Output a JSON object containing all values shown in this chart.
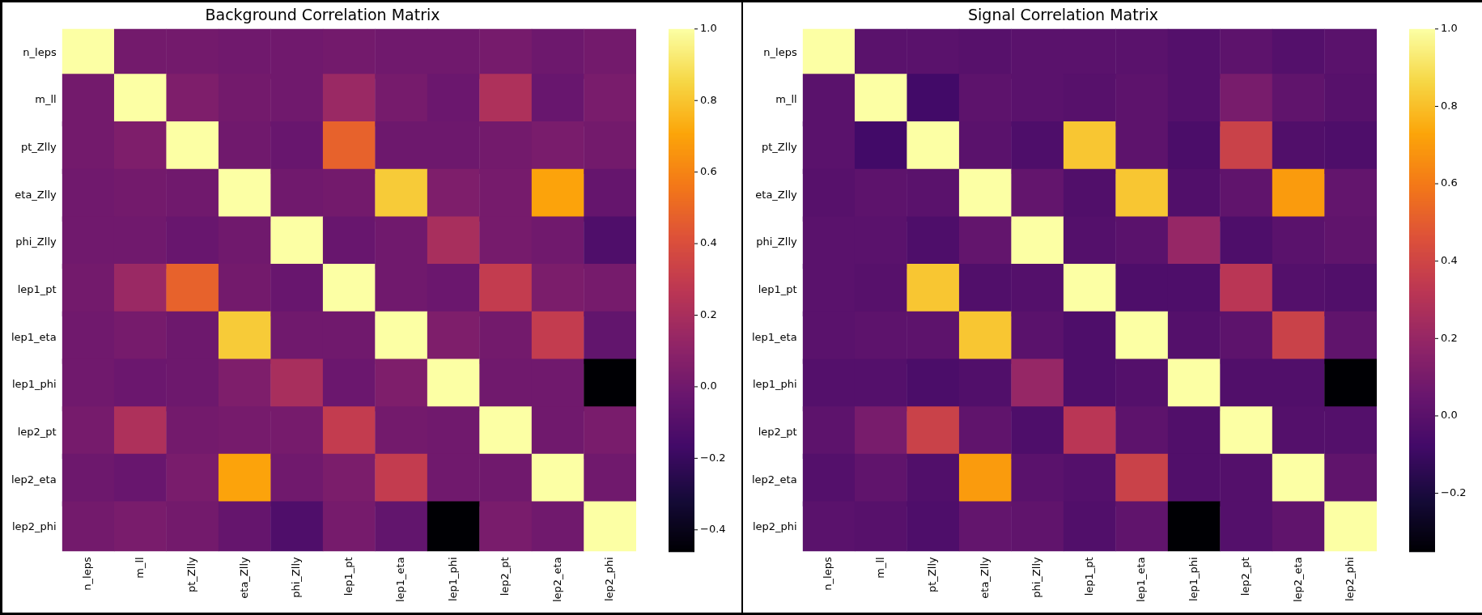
{
  "chart_data": [
    {
      "type": "heatmap",
      "title": "Background Correlation Matrix",
      "grid": false,
      "categories": [
        "n_leps",
        "m_ll",
        "pt_Zlly",
        "eta_Zlly",
        "phi_Zlly",
        "lep1_pt",
        "lep1_eta",
        "lep1_phi",
        "lep2_pt",
        "lep2_eta",
        "lep2_phi"
      ],
      "y_categories": [
        "n_leps",
        "m_ll",
        "pt_Zlly",
        "eta_Zlly",
        "phi_Zlly",
        "lep1_pt",
        "lep1_eta",
        "lep1_phi",
        "lep2_pt",
        "lep2_eta",
        "lep2_phi"
      ],
      "cells": [
        [
          1,
          0.01,
          0.01,
          0.0,
          0.0,
          0.01,
          0.0,
          0.0,
          0.02,
          -0.01,
          0.01
        ],
        [
          0.01,
          1,
          0.05,
          0.01,
          0.0,
          0.15,
          0.02,
          -0.02,
          0.22,
          -0.03,
          0.03
        ],
        [
          0.01,
          0.05,
          1,
          0.0,
          -0.03,
          0.48,
          -0.01,
          -0.01,
          0.01,
          0.03,
          0.01
        ],
        [
          0.0,
          0.01,
          0.0,
          1,
          0.0,
          0.01,
          0.82,
          0.05,
          0.02,
          0.7,
          -0.04
        ],
        [
          0.0,
          0.0,
          -0.03,
          0.0,
          1,
          -0.03,
          0.0,
          0.2,
          0.02,
          0.0,
          -0.12
        ],
        [
          0.01,
          0.15,
          0.48,
          0.01,
          -0.03,
          1,
          0.0,
          -0.02,
          0.3,
          0.04,
          0.02
        ],
        [
          0.0,
          0.02,
          -0.01,
          0.82,
          0.0,
          0.0,
          1,
          0.05,
          0.01,
          0.3,
          -0.05
        ],
        [
          0.0,
          -0.02,
          -0.01,
          0.05,
          0.2,
          -0.02,
          0.05,
          1,
          0.0,
          0.0,
          -0.46
        ],
        [
          0.02,
          0.22,
          0.01,
          0.02,
          0.02,
          0.3,
          0.01,
          0.0,
          1,
          0.0,
          0.03
        ],
        [
          -0.01,
          -0.03,
          0.03,
          0.7,
          0.0,
          0.04,
          0.3,
          0.0,
          0.0,
          1,
          0.0
        ],
        [
          0.01,
          0.03,
          0.01,
          -0.04,
          -0.12,
          0.02,
          -0.05,
          -0.46,
          0.03,
          0.0,
          1
        ]
      ],
      "clim": [
        -0.46,
        1.0
      ],
      "cticks": [
        {
          "value": -0.4,
          "label": "−0.4"
        },
        {
          "value": -0.2,
          "label": "−0.2"
        },
        {
          "value": 0,
          "label": "0.0"
        },
        {
          "value": 0.2,
          "label": "0.2"
        },
        {
          "value": 0.4,
          "label": "0.4"
        },
        {
          "value": 0.6,
          "label": "0.6"
        },
        {
          "value": 0.8,
          "label": "0.8"
        },
        {
          "value": 1,
          "label": "1.0"
        }
      ]
    },
    {
      "type": "heatmap",
      "title": "Signal Correlation Matrix",
      "grid": false,
      "categories": [
        "n_leps",
        "m_ll",
        "pt_Zlly",
        "eta_Zlly",
        "phi_Zlly",
        "lep1_pt",
        "lep1_eta",
        "lep1_phi",
        "lep2_pt",
        "lep2_eta",
        "lep2_phi"
      ],
      "y_categories": [
        "n_leps",
        "m_ll",
        "pt_Zlly",
        "eta_Zlly",
        "phi_Zlly",
        "lep1_pt",
        "lep1_eta",
        "lep1_phi",
        "lep2_pt",
        "lep2_eta",
        "lep2_phi"
      ],
      "cells": [
        [
          1,
          0.0,
          0.0,
          -0.01,
          0.0,
          0.0,
          0.0,
          -0.02,
          0.01,
          -0.02,
          0.0
        ],
        [
          0.0,
          1,
          -0.08,
          0.01,
          0.0,
          -0.01,
          0.01,
          -0.02,
          0.1,
          0.02,
          -0.01
        ],
        [
          0.0,
          -0.08,
          1,
          0.0,
          -0.04,
          0.82,
          0.01,
          -0.05,
          0.38,
          -0.03,
          -0.04
        ],
        [
          -0.01,
          0.01,
          0.0,
          1,
          0.03,
          -0.03,
          0.82,
          -0.03,
          0.02,
          0.7,
          0.03
        ],
        [
          0.0,
          0.0,
          -0.04,
          0.03,
          1,
          -0.02,
          0.0,
          0.2,
          -0.04,
          0.0,
          0.02
        ],
        [
          0.0,
          -0.01,
          0.82,
          -0.03,
          -0.02,
          1,
          -0.04,
          -0.04,
          0.32,
          -0.02,
          -0.03
        ],
        [
          0.0,
          0.01,
          0.01,
          0.82,
          0.0,
          -0.04,
          1,
          -0.02,
          0.01,
          0.38,
          0.02
        ],
        [
          -0.02,
          -0.02,
          -0.05,
          -0.03,
          0.2,
          -0.04,
          -0.02,
          1,
          -0.03,
          -0.03,
          -0.35
        ],
        [
          0.01,
          0.1,
          0.38,
          0.02,
          -0.04,
          0.32,
          0.01,
          -0.03,
          1,
          -0.02,
          -0.02
        ],
        [
          -0.02,
          0.02,
          -0.03,
          0.7,
          0.0,
          -0.02,
          0.38,
          -0.03,
          -0.02,
          1,
          0.02
        ],
        [
          0.0,
          -0.01,
          -0.04,
          0.03,
          0.02,
          -0.03,
          0.02,
          -0.35,
          -0.02,
          0.02,
          1
        ]
      ],
      "clim": [
        -0.35,
        1.0
      ],
      "cticks": [
        {
          "value": -0.2,
          "label": "−0.2"
        },
        {
          "value": 0,
          "label": "0.0"
        },
        {
          "value": 0.2,
          "label": "0.2"
        },
        {
          "value": 0.4,
          "label": "0.4"
        },
        {
          "value": 0.6,
          "label": "0.6"
        },
        {
          "value": 0.8,
          "label": "0.8"
        },
        {
          "value": 1,
          "label": "1.0"
        }
      ]
    }
  ]
}
